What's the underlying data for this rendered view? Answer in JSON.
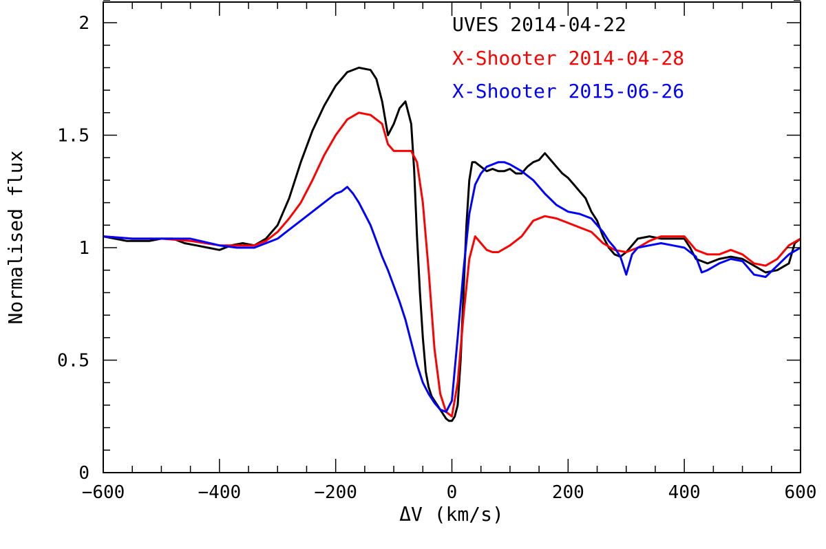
{
  "chart_data": {
    "type": "line",
    "title": "",
    "xlabel": "ΔV (km/s)",
    "ylabel": "Normalised flux",
    "xlim": [
      -600,
      600
    ],
    "ylim": [
      0,
      2.1
    ],
    "x_ticks": [
      -600,
      -400,
      -200,
      0,
      200,
      400,
      600
    ],
    "x_tick_labels": [
      "−600",
      "−400",
      "−200",
      "0",
      "200",
      "400",
      "600"
    ],
    "y_ticks": [
      0,
      0.5,
      1,
      1.5,
      2
    ],
    "y_tick_labels": [
      "0",
      "0.5",
      "1",
      "1.5",
      "2"
    ],
    "x_minor_step": 50,
    "y_minor_step": 0.1,
    "grid": false,
    "legend_position": "top-right",
    "series": [
      {
        "name": "UVES 2014-04-22",
        "color": "#000000",
        "x": [
          -600,
          -580,
          -560,
          -540,
          -520,
          -500,
          -480,
          -460,
          -440,
          -420,
          -400,
          -380,
          -360,
          -340,
          -320,
          -300,
          -280,
          -260,
          -240,
          -220,
          -200,
          -180,
          -160,
          -140,
          -130,
          -120,
          -110,
          -100,
          -90,
          -80,
          -75,
          -70,
          -65,
          -60,
          -55,
          -50,
          -45,
          -40,
          -35,
          -30,
          -25,
          -20,
          -15,
          -10,
          -5,
          0,
          5,
          10,
          15,
          20,
          25,
          30,
          35,
          40,
          50,
          60,
          70,
          80,
          90,
          100,
          110,
          120,
          130,
          140,
          150,
          160,
          170,
          180,
          190,
          200,
          210,
          220,
          230,
          240,
          250,
          260,
          270,
          280,
          290,
          300,
          310,
          320,
          340,
          360,
          380,
          400,
          410,
          420,
          440,
          460,
          480,
          500,
          520,
          540,
          560,
          580,
          590,
          600
        ],
        "y": [
          1.05,
          1.04,
          1.03,
          1.03,
          1.03,
          1.04,
          1.04,
          1.02,
          1.01,
          1.0,
          0.99,
          1.01,
          1.02,
          1.01,
          1.04,
          1.1,
          1.22,
          1.38,
          1.52,
          1.63,
          1.72,
          1.78,
          1.8,
          1.79,
          1.75,
          1.65,
          1.5,
          1.55,
          1.62,
          1.65,
          1.6,
          1.55,
          1.35,
          1.05,
          0.8,
          0.6,
          0.45,
          0.38,
          0.34,
          0.32,
          0.3,
          0.28,
          0.26,
          0.24,
          0.23,
          0.23,
          0.25,
          0.3,
          0.5,
          0.8,
          1.1,
          1.3,
          1.38,
          1.38,
          1.36,
          1.34,
          1.35,
          1.34,
          1.34,
          1.35,
          1.33,
          1.33,
          1.36,
          1.38,
          1.39,
          1.42,
          1.39,
          1.36,
          1.33,
          1.31,
          1.28,
          1.25,
          1.22,
          1.16,
          1.12,
          1.05,
          1.0,
          0.97,
          0.96,
          0.98,
          1.01,
          1.04,
          1.05,
          1.04,
          1.04,
          1.04,
          1.0,
          0.95,
          0.93,
          0.95,
          0.96,
          0.95,
          0.92,
          0.89,
          0.9,
          0.93,
          1.02,
          1.04
        ]
      },
      {
        "name": "X-Shooter 2014-04-28",
        "color": "#ff0000",
        "x": [
          -600,
          -550,
          -500,
          -450,
          -400,
          -370,
          -340,
          -320,
          -300,
          -280,
          -260,
          -240,
          -220,
          -200,
          -180,
          -160,
          -140,
          -120,
          -110,
          -100,
          -90,
          -80,
          -70,
          -60,
          -50,
          -40,
          -30,
          -20,
          -10,
          0,
          10,
          20,
          30,
          40,
          50,
          60,
          70,
          80,
          100,
          120,
          140,
          160,
          180,
          200,
          220,
          240,
          260,
          280,
          300,
          320,
          340,
          360,
          380,
          400,
          420,
          440,
          460,
          480,
          500,
          520,
          540,
          560,
          580,
          600
        ],
        "y": [
          1.05,
          1.04,
          1.04,
          1.03,
          1.01,
          1.01,
          1.01,
          1.03,
          1.07,
          1.13,
          1.2,
          1.3,
          1.41,
          1.5,
          1.57,
          1.6,
          1.59,
          1.55,
          1.46,
          1.43,
          1.43,
          1.43,
          1.43,
          1.38,
          1.2,
          0.9,
          0.55,
          0.35,
          0.27,
          0.25,
          0.4,
          0.7,
          0.95,
          1.05,
          1.02,
          0.99,
          0.98,
          0.98,
          1.01,
          1.05,
          1.12,
          1.14,
          1.13,
          1.11,
          1.09,
          1.07,
          1.02,
          0.99,
          0.98,
          1.0,
          1.03,
          1.05,
          1.05,
          1.05,
          0.99,
          0.97,
          0.97,
          0.99,
          0.97,
          0.93,
          0.92,
          0.95,
          1.01,
          1.04
        ]
      },
      {
        "name": "X-Shooter 2015-06-26",
        "color": "#0000ff",
        "x": [
          -600,
          -550,
          -500,
          -450,
          -400,
          -370,
          -340,
          -320,
          -300,
          -280,
          -260,
          -240,
          -220,
          -200,
          -190,
          -180,
          -170,
          -160,
          -150,
          -140,
          -130,
          -120,
          -110,
          -100,
          -90,
          -80,
          -70,
          -60,
          -50,
          -40,
          -30,
          -20,
          -10,
          0,
          10,
          20,
          30,
          40,
          50,
          60,
          70,
          80,
          90,
          100,
          120,
          140,
          160,
          180,
          200,
          220,
          240,
          260,
          270,
          280,
          290,
          300,
          310,
          320,
          340,
          360,
          380,
          400,
          410,
          420,
          430,
          440,
          460,
          480,
          500,
          520,
          540,
          560,
          580,
          600
        ],
        "y": [
          1.05,
          1.04,
          1.04,
          1.04,
          1.01,
          1.0,
          1.0,
          1.02,
          1.04,
          1.08,
          1.12,
          1.16,
          1.2,
          1.24,
          1.25,
          1.27,
          1.24,
          1.2,
          1.15,
          1.1,
          1.03,
          0.96,
          0.9,
          0.83,
          0.76,
          0.68,
          0.58,
          0.48,
          0.4,
          0.35,
          0.31,
          0.28,
          0.27,
          0.32,
          0.6,
          0.9,
          1.15,
          1.28,
          1.33,
          1.36,
          1.37,
          1.38,
          1.38,
          1.37,
          1.34,
          1.3,
          1.24,
          1.19,
          1.16,
          1.15,
          1.13,
          1.07,
          1.03,
          1.0,
          0.96,
          0.88,
          0.97,
          1.0,
          1.01,
          1.02,
          1.01,
          1.0,
          0.98,
          0.96,
          0.89,
          0.9,
          0.93,
          0.95,
          0.94,
          0.88,
          0.87,
          0.92,
          0.97,
          1.0
        ]
      }
    ]
  }
}
